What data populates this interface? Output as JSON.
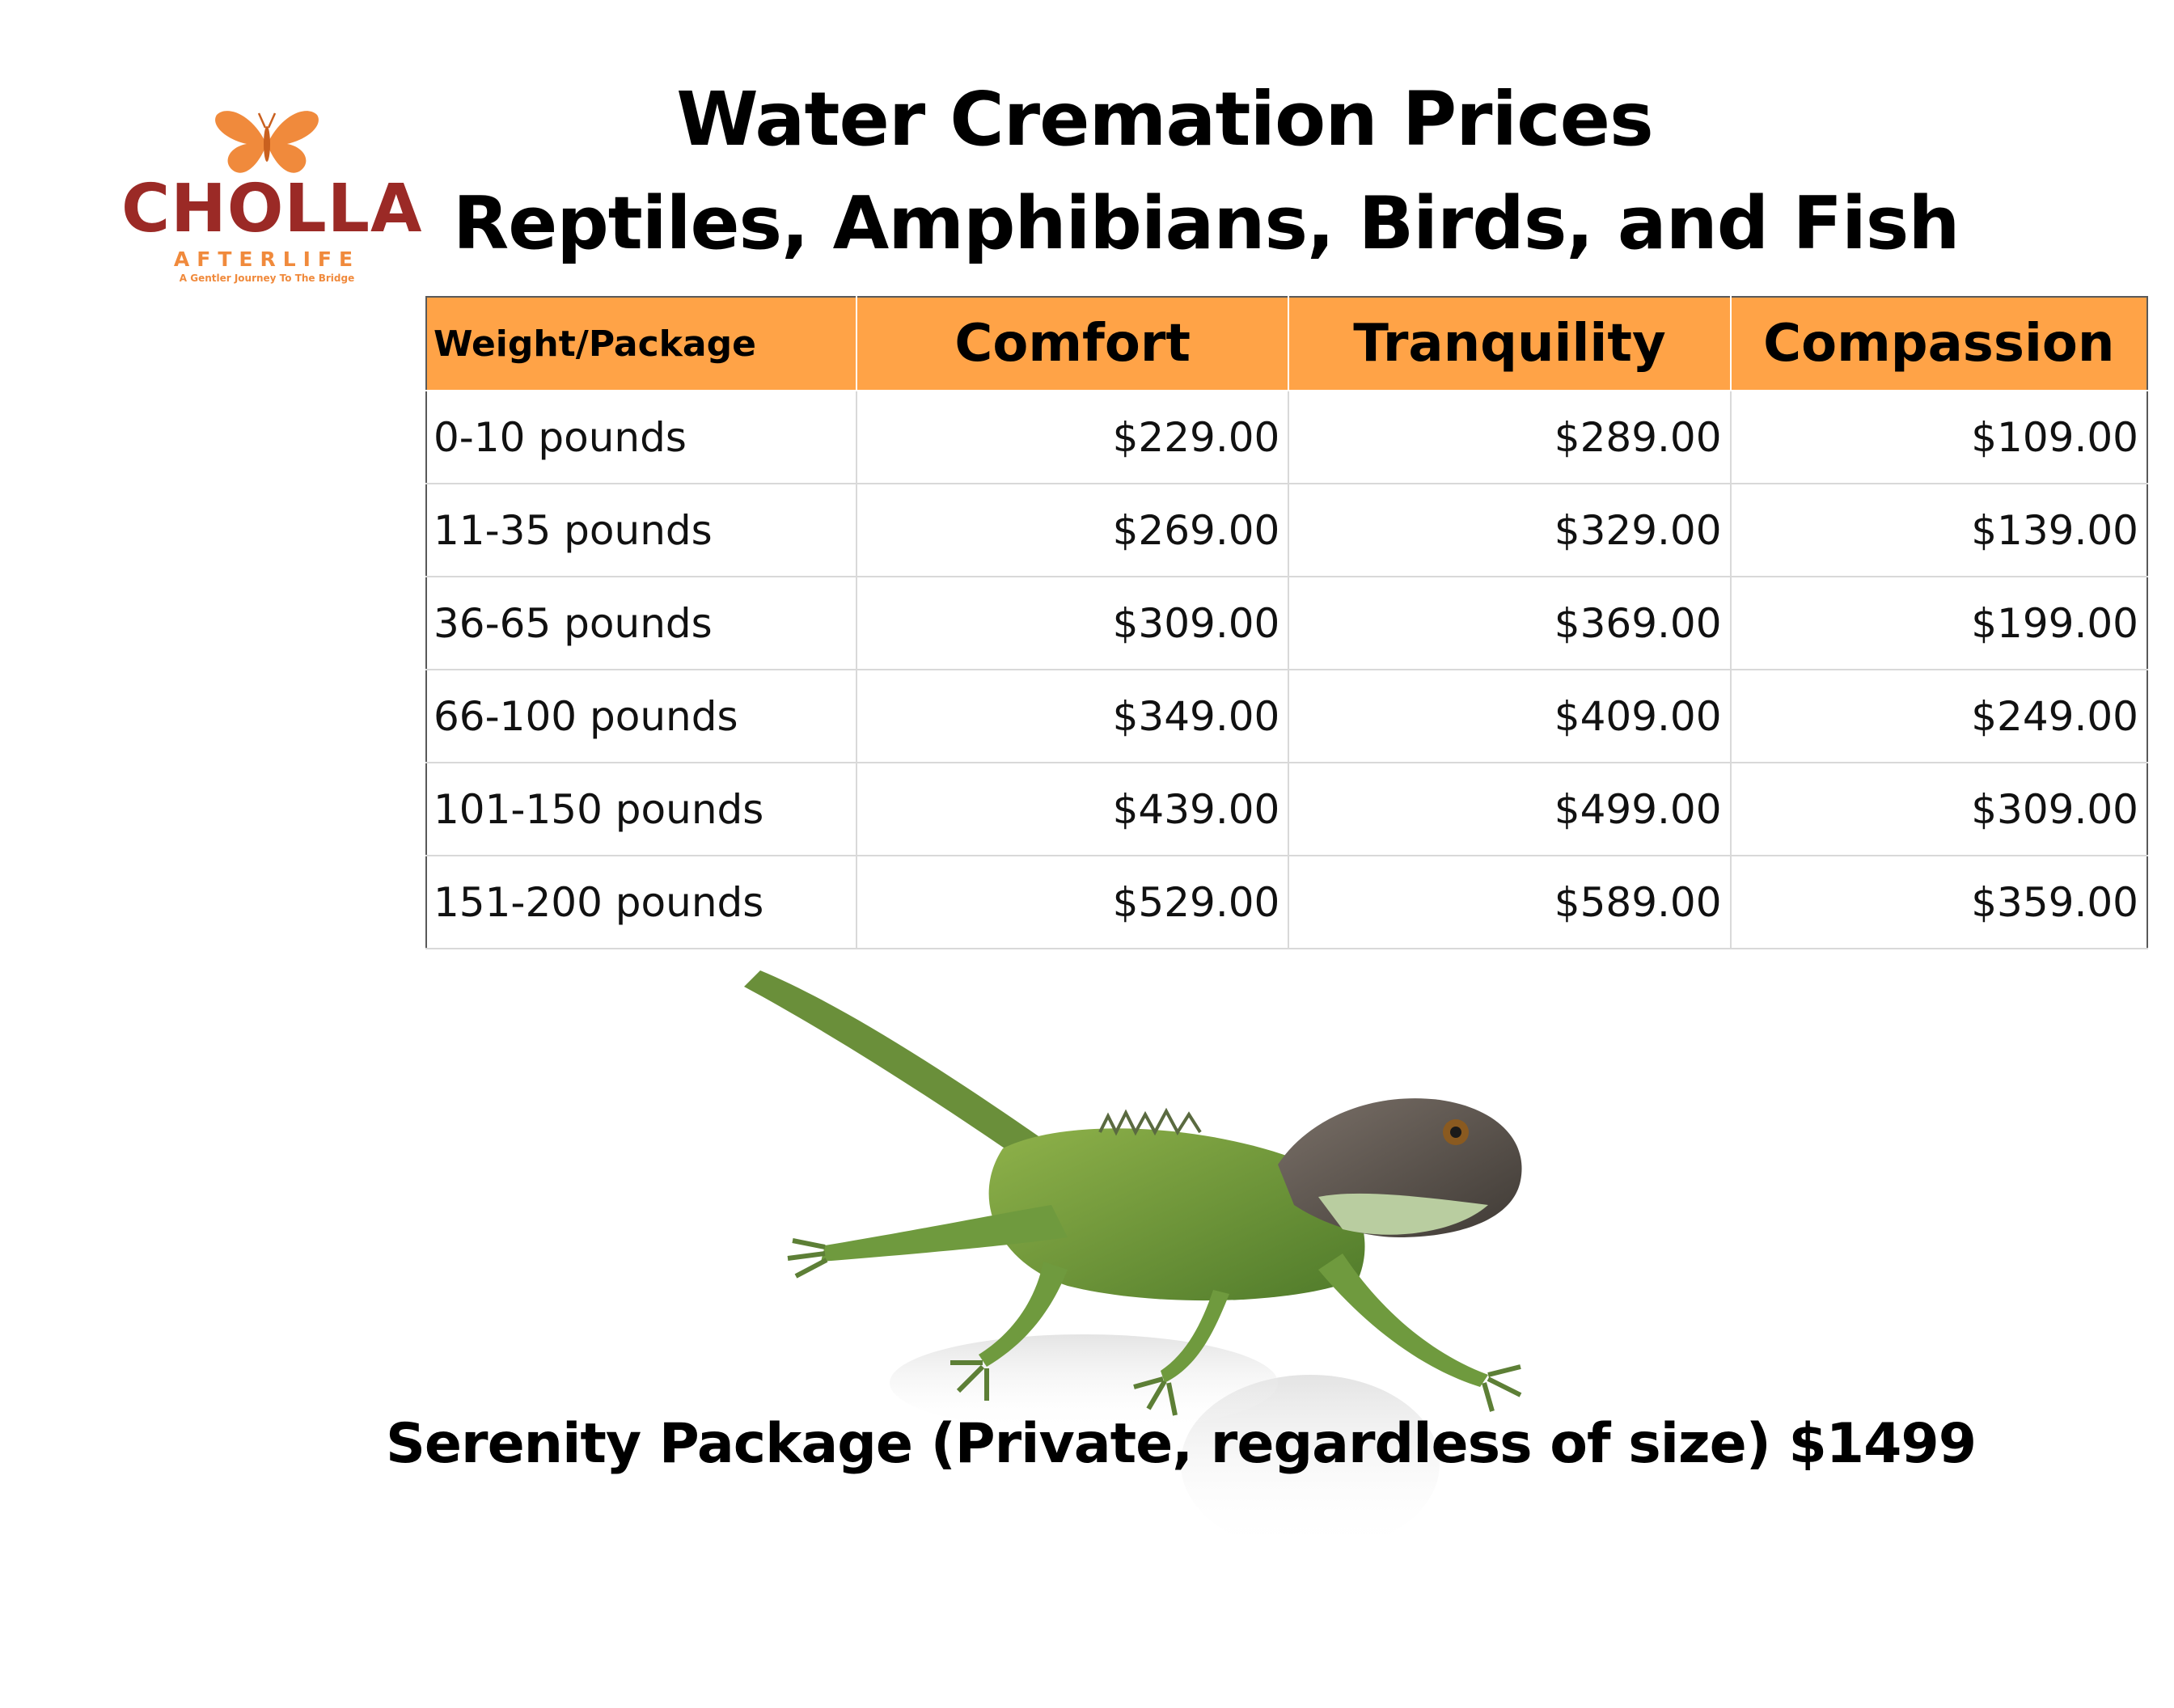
{
  "brand": {
    "name": "CHOLLA",
    "subtitle": "AFTERLIFE",
    "tagline": "A Gentler Journey To The Bridge",
    "colors": {
      "primary": "#9b2a26",
      "accent": "#f08a3c"
    },
    "icon": "butterfly-icon"
  },
  "header": {
    "title": "Water Cremation Prices",
    "subtitle": "Reptiles, Amphibians, Birds, and Fish"
  },
  "table": {
    "header_color": "#ffa347",
    "columns": [
      "Weight/Package",
      "Comfort",
      "Tranquility",
      "Compassion"
    ],
    "rows": [
      {
        "weight": "0-10 pounds",
        "comfort": "$229.00",
        "tranquility": "$289.00",
        "compassion": "$109.00"
      },
      {
        "weight": "11-35 pounds",
        "comfort": "$269.00",
        "tranquility": "$329.00",
        "compassion": "$139.00"
      },
      {
        "weight": "36-65 pounds",
        "comfort": "$309.00",
        "tranquility": "$369.00",
        "compassion": "$199.00"
      },
      {
        "weight": "66-100 pounds",
        "comfort": "$349.00",
        "tranquility": "$409.00",
        "compassion": "$249.00"
      },
      {
        "weight": "101-150 pounds",
        "comfort": "$439.00",
        "tranquility": "$499.00",
        "compassion": "$309.00"
      },
      {
        "weight": "151-200 pounds",
        "comfort": "$529.00",
        "tranquility": "$589.00",
        "compassion": "$359.00"
      }
    ]
  },
  "illustration": {
    "icon": "iguana-photo"
  },
  "footer": {
    "serenity": "Serenity Package (Private, regardless of size) $1499"
  }
}
